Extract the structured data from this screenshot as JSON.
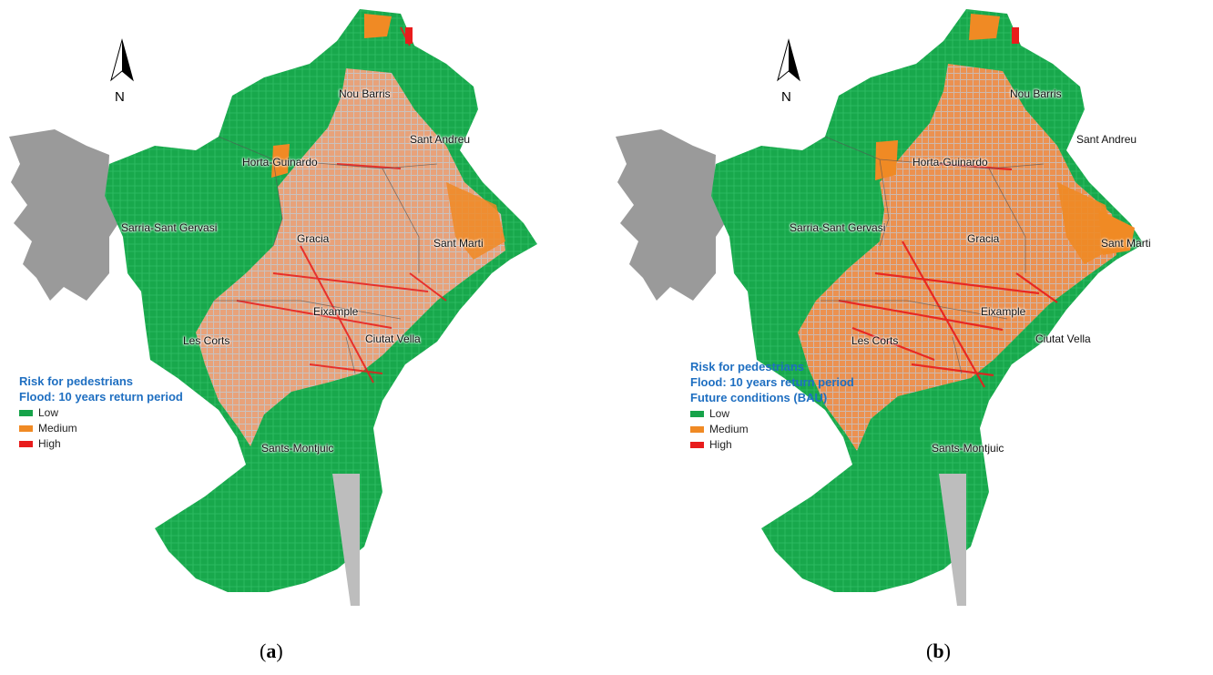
{
  "panels": [
    {
      "caption_letter": "a",
      "north_label": "N",
      "legend": {
        "title_lines": [
          "Risk for pedestrians",
          "Flood: 10 years return period"
        ],
        "items": [
          {
            "label": "Low",
            "color": "#16a34a"
          },
          {
            "label": "Medium",
            "color": "#f08a24"
          },
          {
            "label": "High",
            "color": "#e81c1c"
          }
        ]
      },
      "districts": [
        "Nou Barris",
        "Sant Andreu",
        "Horta-Guinardo",
        "Sarria-Sant Gervasi",
        "Gracia",
        "Sant Marti",
        "Eixample",
        "Les Corts",
        "Ciutat Vella",
        "Sants-Montjuic"
      ]
    },
    {
      "caption_letter": "b",
      "north_label": "N",
      "legend": {
        "title_lines": [
          "Risk for pedestrians",
          "Flood: 10 years return period",
          "Future conditions (BAU)"
        ],
        "items": [
          {
            "label": "Low",
            "color": "#16a34a"
          },
          {
            "label": "Medium",
            "color": "#f08a24"
          },
          {
            "label": "High",
            "color": "#e81c1c"
          }
        ]
      },
      "districts": [
        "Nou Barris",
        "Sant Andreu",
        "Horta-Guinardo",
        "Sarria-Sant Gervasi",
        "Gracia",
        "Sant Marti",
        "Eixample",
        "Les Corts",
        "Ciutat Vella",
        "Sants-Montjuic"
      ]
    }
  ],
  "colors": {
    "low": "#16a34a",
    "medium": "#f08a24",
    "high": "#e81c1c",
    "terrain": "#9a9a9a",
    "legend_title": "#1f6fc1"
  }
}
